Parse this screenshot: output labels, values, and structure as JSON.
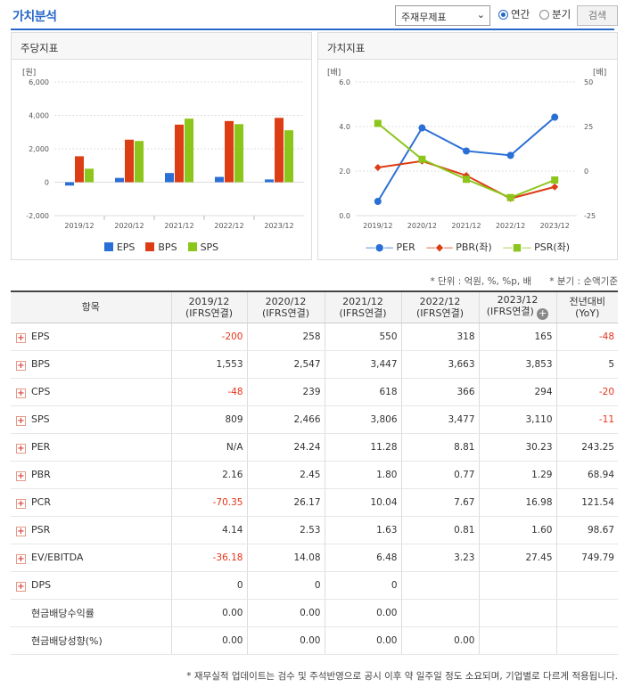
{
  "header": {
    "title": "가치분석",
    "select_value": "주재무제표",
    "radio_annual": "연간",
    "radio_quarter": "분기",
    "search_btn": "검색"
  },
  "left_panel": {
    "title": "주당지표",
    "unit": "[원]",
    "yticks": [
      "6,000",
      "4,000",
      "2,000",
      "0",
      "-2,000"
    ],
    "legend": [
      {
        "name": "EPS",
        "color": "#2a6fd6"
      },
      {
        "name": "BPS",
        "color": "#dc3d14"
      },
      {
        "name": "SPS",
        "color": "#8cc51b"
      }
    ]
  },
  "right_panel": {
    "title": "가치지표",
    "unit_left": "[배]",
    "unit_right": "[배]",
    "yticks_left": [
      "6.0",
      "4.0",
      "2.0",
      "0.0"
    ],
    "yticks_right": [
      "50",
      "25",
      "0",
      "-25"
    ],
    "legend": [
      {
        "name": "PER",
        "color": "#2a6fd6"
      },
      {
        "name": "PBR(좌)",
        "color": "#dc3d14"
      },
      {
        "name": "PSR(좌)",
        "color": "#8cc51b"
      }
    ]
  },
  "chart_data": [
    {
      "type": "bar",
      "title": "주당지표",
      "ylabel": "[원]",
      "categories": [
        "2019/12",
        "2020/12",
        "2021/12",
        "2022/12",
        "2023/12"
      ],
      "ylim": [
        -2000,
        6000
      ],
      "series": [
        {
          "name": "EPS",
          "values": [
            -200,
            258,
            550,
            318,
            165
          ]
        },
        {
          "name": "BPS",
          "values": [
            1553,
            2547,
            3447,
            3663,
            3853
          ]
        },
        {
          "name": "SPS",
          "values": [
            809,
            2466,
            3806,
            3477,
            3110
          ]
        }
      ]
    },
    {
      "type": "line",
      "title": "가치지표",
      "categories": [
        "2019/12",
        "2020/12",
        "2021/12",
        "2022/12",
        "2023/12"
      ],
      "series": [
        {
          "name": "PER",
          "axis": "right",
          "ylim": [
            -25,
            50
          ],
          "values": [
            -17,
            24.24,
            11.28,
            8.81,
            30.23
          ]
        },
        {
          "name": "PBR(좌)",
          "axis": "left",
          "ylim": [
            0,
            6
          ],
          "values": [
            2.16,
            2.45,
            1.8,
            0.77,
            1.29
          ]
        },
        {
          "name": "PSR(좌)",
          "axis": "left",
          "ylim": [
            0,
            6
          ],
          "values": [
            4.14,
            2.53,
            1.63,
            0.81,
            1.6
          ]
        }
      ]
    }
  ],
  "notes": {
    "unit": "* 단위 : 억원, %, %p, 배",
    "basis": "* 분기 : 순액기준",
    "footer": "* 재무실적 업데이트는 검수 및 주석반영으로 공시 이후 약 일주일 정도 소요되며, 기업별로 다르게 적용됩니다."
  },
  "table": {
    "headers": [
      "항목",
      "2019/12\n(IFRS연결)",
      "2020/12\n(IFRS연결)",
      "2021/12\n(IFRS연결)",
      "2022/12\n(IFRS연결)",
      "2023/12\n(IFRS연결)",
      "전년대비\n(YoY)"
    ],
    "rows": [
      {
        "label": "EPS",
        "plus": true,
        "cells": [
          "-200",
          "258",
          "550",
          "318",
          "165",
          "-48"
        ]
      },
      {
        "label": "BPS",
        "plus": true,
        "cells": [
          "1,553",
          "2,547",
          "3,447",
          "3,663",
          "3,853",
          "5"
        ]
      },
      {
        "label": "CPS",
        "plus": true,
        "cells": [
          "-48",
          "239",
          "618",
          "366",
          "294",
          "-20"
        ]
      },
      {
        "label": "SPS",
        "plus": true,
        "cells": [
          "809",
          "2,466",
          "3,806",
          "3,477",
          "3,110",
          "-11"
        ]
      },
      {
        "label": "PER",
        "plus": true,
        "cells": [
          "N/A",
          "24.24",
          "11.28",
          "8.81",
          "30.23",
          "243.25"
        ]
      },
      {
        "label": "PBR",
        "plus": true,
        "cells": [
          "2.16",
          "2.45",
          "1.80",
          "0.77",
          "1.29",
          "68.94"
        ]
      },
      {
        "label": "PCR",
        "plus": true,
        "cells": [
          "-70.35",
          "26.17",
          "10.04",
          "7.67",
          "16.98",
          "121.54"
        ]
      },
      {
        "label": "PSR",
        "plus": true,
        "cells": [
          "4.14",
          "2.53",
          "1.63",
          "0.81",
          "1.60",
          "98.67"
        ]
      },
      {
        "label": "EV/EBITDA",
        "plus": true,
        "cells": [
          "-36.18",
          "14.08",
          "6.48",
          "3.23",
          "27.45",
          "749.79"
        ]
      },
      {
        "label": "DPS",
        "plus": true,
        "cells": [
          "0",
          "0",
          "0",
          "",
          "",
          ""
        ]
      },
      {
        "label": "현금배당수익률",
        "plus": false,
        "cells": [
          "0.00",
          "0.00",
          "0.00",
          "",
          "",
          ""
        ]
      },
      {
        "label": "현금배당성향(%)",
        "plus": false,
        "cells": [
          "0.00",
          "0.00",
          "0.00",
          "0.00",
          "",
          ""
        ]
      }
    ]
  }
}
